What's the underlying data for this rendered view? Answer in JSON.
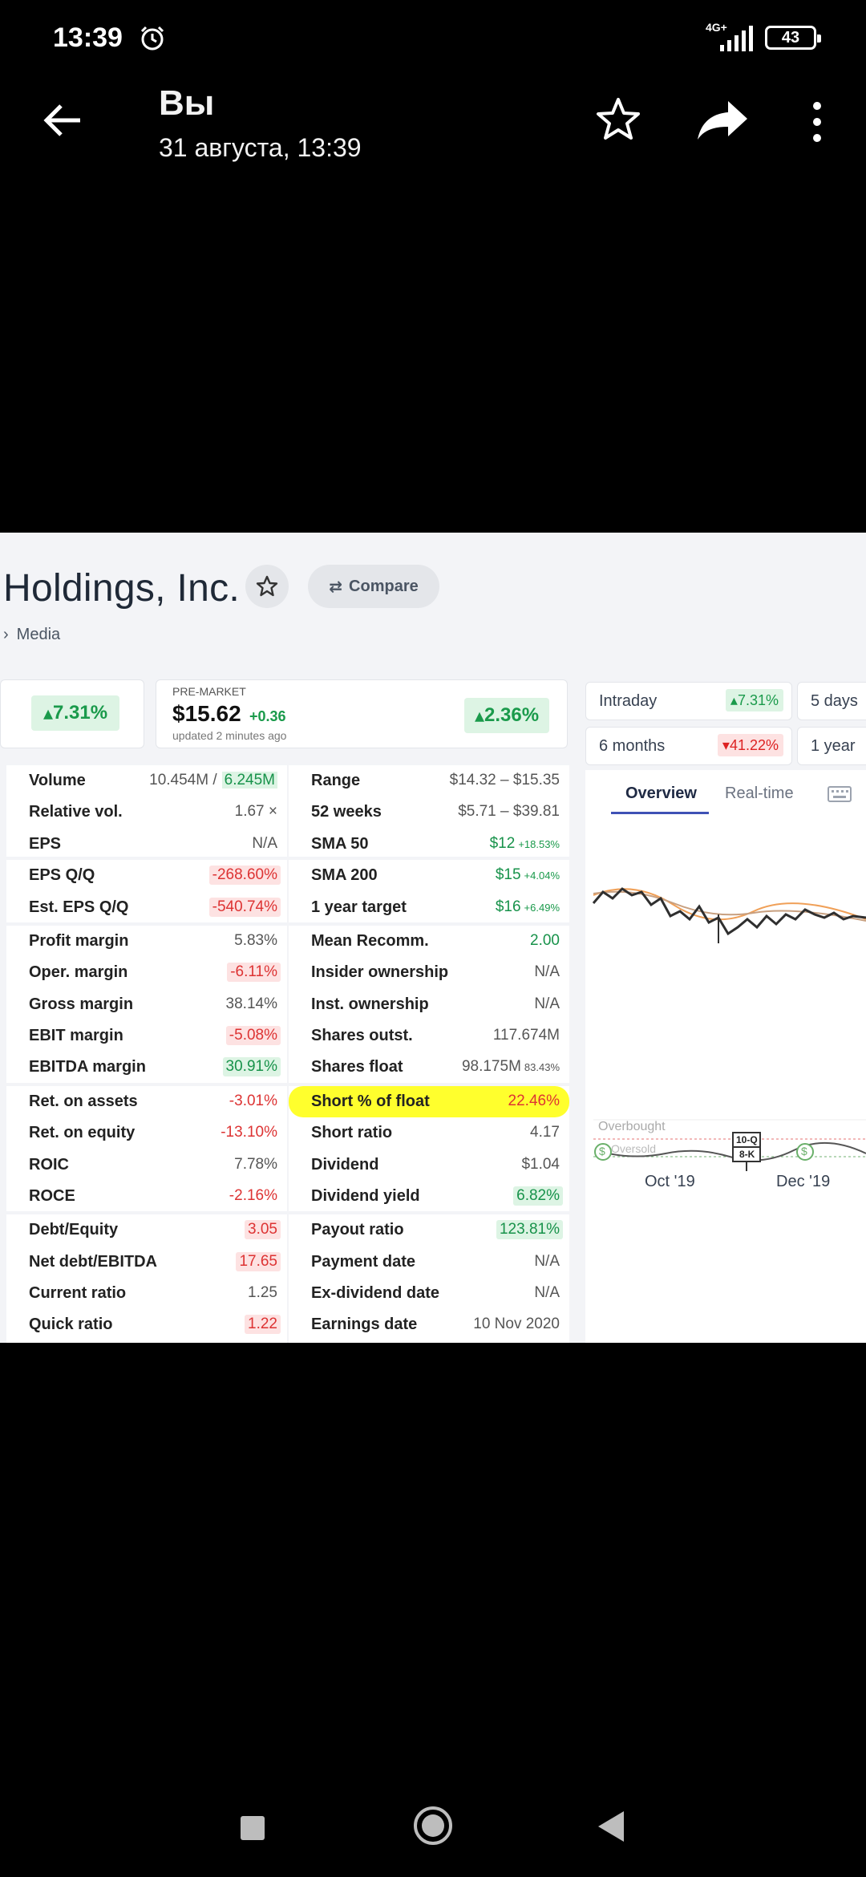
{
  "status_bar": {
    "time": "13:39",
    "network": "4G+",
    "battery": "43"
  },
  "app_bar": {
    "title": "Вы",
    "subtitle": "31 августа, 13:39"
  },
  "photo": {
    "company": "Holdings, Inc.",
    "compare_label": "Compare",
    "sector": "Media",
    "day_change": "7.31%",
    "premarket": {
      "label": "PRE-MARKET",
      "price": "$15.62",
      "delta": "+0.36",
      "updated": "updated 2 minutes ago",
      "change": "2.36%"
    },
    "periods": [
      {
        "label": "Intraday",
        "value": "7.31%",
        "dir": "up"
      },
      {
        "label": "5 days",
        "value": "",
        "dir": ""
      },
      {
        "label": "6 months",
        "value": "41.22%",
        "dir": "down"
      },
      {
        "label": "1 year",
        "value": "",
        "dir": ""
      }
    ],
    "tabs": {
      "overview": "Overview",
      "realtime": "Real-time"
    },
    "left_table": [
      {
        "k": "Volume",
        "v": "10.454M /",
        "v2": "6.245M"
      },
      {
        "k": "Relative vol.",
        "v": "1.67 ×"
      },
      {
        "k": "EPS",
        "v": "N/A"
      },
      {
        "k": "EPS Q/Q",
        "v": "-268.60%"
      },
      {
        "k": "Est. EPS Q/Q",
        "v": "-540.74%"
      },
      {
        "k": "Profit margin",
        "v": "5.83%"
      },
      {
        "k": "Oper. margin",
        "v": "-6.11%"
      },
      {
        "k": "Gross margin",
        "v": "38.14%"
      },
      {
        "k": "EBIT margin",
        "v": "-5.08%"
      },
      {
        "k": "EBITDA margin",
        "v": "30.91%"
      },
      {
        "k": "Ret. on assets",
        "v": "-3.01%"
      },
      {
        "k": "Ret. on equity",
        "v": "-13.10%"
      },
      {
        "k": "ROIC",
        "v": "7.78%"
      },
      {
        "k": "ROCE",
        "v": "-2.16%"
      },
      {
        "k": "Debt/Equity",
        "v": "3.05"
      },
      {
        "k": "Net debt/EBITDA",
        "v": "17.65"
      },
      {
        "k": "Current ratio",
        "v": "1.25"
      },
      {
        "k": "Quick ratio",
        "v": "1.22"
      }
    ],
    "right_table": [
      {
        "k": "Range",
        "v": "$14.32 – $15.35"
      },
      {
        "k": "52 weeks",
        "v": "$5.71 – $39.81"
      },
      {
        "k": "SMA 50",
        "v": "$12",
        "s": "+18.53%"
      },
      {
        "k": "SMA 200",
        "v": "$15",
        "s": "+4.04%"
      },
      {
        "k": "1 year target",
        "v": "$16",
        "s": "+6.49%"
      },
      {
        "k": "Mean Recomm.",
        "v": "2.00"
      },
      {
        "k": "Insider ownership",
        "v": "N/A"
      },
      {
        "k": "Inst. ownership",
        "v": "N/A"
      },
      {
        "k": "Shares outst.",
        "v": "117.674M"
      },
      {
        "k": "Shares float",
        "v": "98.175M",
        "s": "83.43%"
      },
      {
        "k": "Short % of float",
        "v": "22.46%"
      },
      {
        "k": "Short ratio",
        "v": "4.17"
      },
      {
        "k": "Dividend",
        "v": "$1.04"
      },
      {
        "k": "Dividend yield",
        "v": "6.82%"
      },
      {
        "k": "Payout ratio",
        "v": "123.81%"
      },
      {
        "k": "Payment date",
        "v": "N/A"
      },
      {
        "k": "Ex-dividend date",
        "v": "N/A"
      },
      {
        "k": "Earnings date",
        "v": "10 Nov 2020"
      }
    ],
    "chart": {
      "x_labels": [
        "Oct '19",
        "Dec '19"
      ],
      "overbought": "Overbought",
      "oversold": "Oversold",
      "badges": [
        "10-Q",
        "8-K"
      ],
      "dividend_marker": "$"
    }
  },
  "colors": {
    "positive": "#1a9a4b",
    "negative": "#dd2222",
    "highlight": "#ffff2d"
  }
}
